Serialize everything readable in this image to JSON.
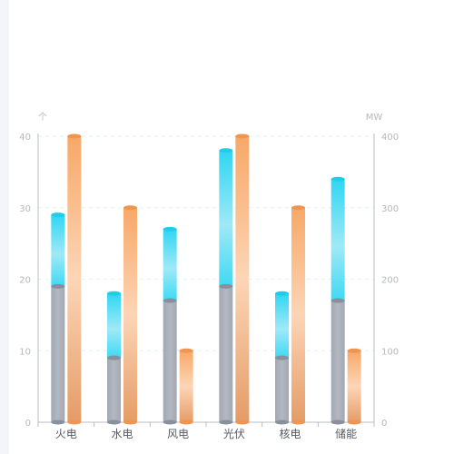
{
  "chart_data": {
    "type": "bar",
    "categories": [
      "火电",
      "水电",
      "风电",
      "光伏",
      "核电",
      "储能"
    ],
    "left_axis": {
      "unit": "个",
      "ylim": [
        0,
        40
      ],
      "ticks": [
        0,
        10,
        20,
        30,
        40
      ]
    },
    "right_axis": {
      "unit": "MW",
      "ylim": [
        0,
        400
      ],
      "ticks": [
        0,
        100,
        200,
        300,
        400
      ]
    },
    "stacked_left": [
      {
        "values": [
          19,
          9,
          17,
          19,
          9,
          17
        ],
        "color": "#a9aeb8"
      },
      {
        "values": [
          10,
          9,
          10,
          19,
          9,
          17
        ],
        "color": "#55ddf3"
      }
    ],
    "right_series": {
      "values": [
        400,
        300,
        100,
        400,
        300,
        100
      ],
      "color": "#f7a867"
    },
    "grid": true
  }
}
